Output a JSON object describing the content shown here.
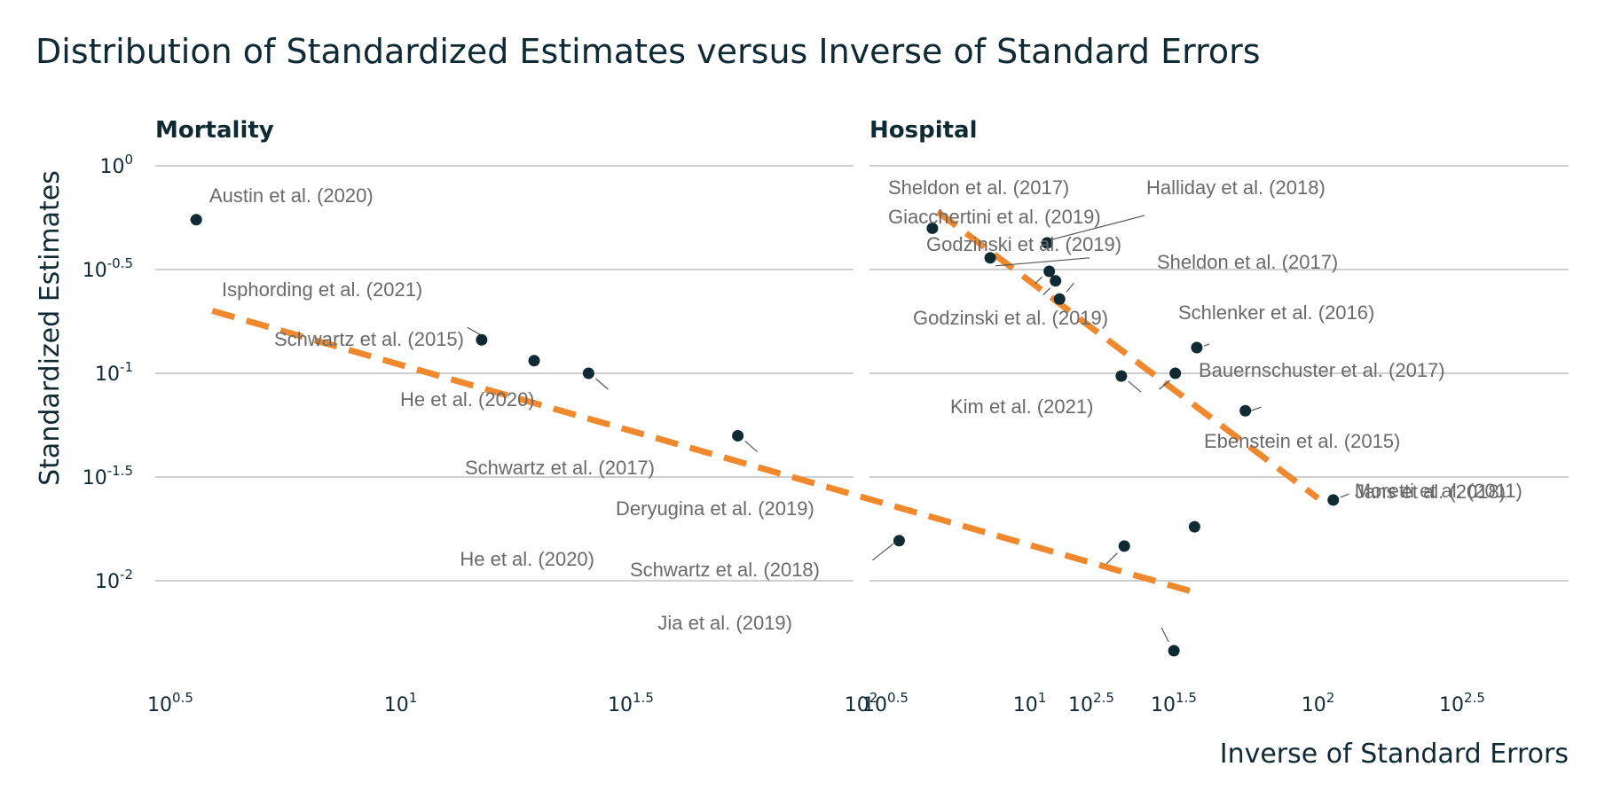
{
  "title": "Distribution of Standardized Estimates versus Inverse of Standard Errors",
  "chart_data": [
    {
      "type": "scatter",
      "panel_title": "Mortality",
      "ylabel": "Standardized Estimates",
      "x_scale": "log10",
      "y_scale": "log10",
      "ylim": [
        0.0045,
        1.0
      ],
      "y_ticks": [
        {
          "base": "10",
          "exp": "0",
          "value": 1.0
        },
        {
          "base": "10",
          "exp": "-0.5",
          "value": 0.3162
        },
        {
          "base": "10",
          "exp": "-1",
          "value": 0.1
        },
        {
          "base": "10",
          "exp": "-1.5",
          "value": 0.03162
        },
        {
          "base": "10",
          "exp": "-2",
          "value": 0.01
        }
      ],
      "x_ticks": [
        {
          "base": "10",
          "exp": "0.5",
          "value": 3.162
        },
        {
          "base": "10",
          "exp": "1",
          "value": 10
        },
        {
          "base": "10",
          "exp": "1.5",
          "value": 31.62
        },
        {
          "base": "10",
          "exp": "2",
          "value": 100
        },
        {
          "base": "10",
          "exp": "2.5",
          "value": 316.2
        }
      ],
      "grid": "horizontal",
      "fit_line": {
        "x": [
          3.9,
          530
        ],
        "y": [
          0.2,
          0.0088
        ]
      },
      "points": [
        {
          "label": "Austin et al. (2020)",
          "x": 3.6,
          "y": 0.55
        },
        {
          "label": "Isphording et al. (2021)",
          "x": 15.0,
          "y": 0.145
        },
        {
          "label": "Schwartz et al. (2015)",
          "x": 19.5,
          "y": 0.115
        },
        {
          "label": "He et al. (2020)",
          "x": 25.6,
          "y": 0.1
        },
        {
          "label": "Schwartz et al. (2017)",
          "x": 54.0,
          "y": 0.05
        },
        {
          "label": "Deryugina et al. (2019)",
          "x": 530.0,
          "y": 0.0182
        },
        {
          "label": "He et al. (2020)",
          "x": 121.0,
          "y": 0.0156
        },
        {
          "label": "Schwartz et al. (2018)",
          "x": 373.0,
          "y": 0.0147
        },
        {
          "label": "Jia et al. (2019)",
          "x": 478.0,
          "y": 0.0046
        }
      ]
    },
    {
      "type": "scatter",
      "panel_title": "Hospital",
      "x_scale": "log10",
      "y_scale": "log10",
      "ylim": [
        0.0045,
        1.0
      ],
      "x_ticks": [
        {
          "base": "10",
          "exp": "0.5",
          "value": 3.162
        },
        {
          "base": "10",
          "exp": "1",
          "value": 10
        },
        {
          "base": "10",
          "exp": "1.5",
          "value": 31.62
        },
        {
          "base": "10",
          "exp": "2",
          "value": 100
        },
        {
          "base": "10",
          "exp": "2.5",
          "value": 316.2
        }
      ],
      "grid": "horizontal",
      "fit_line": {
        "x": [
          4.8,
          100
        ],
        "y": [
          0.6,
          0.025
        ]
      },
      "points": [
        {
          "label": "Sheldon et al. (2017)",
          "x": 4.6,
          "y": 0.5
        },
        {
          "label": "Halliday et al. (2018)",
          "x": 11.5,
          "y": 0.425
        },
        {
          "label": "Giacchertini et al. (2019)",
          "x": 11.5,
          "y": 0.425
        },
        {
          "label": "Sheldon et al. (2017)",
          "x": 7.3,
          "y": 0.36
        },
        {
          "label": "Godzinski et al. (2019)",
          "x": 11.7,
          "y": 0.31
        },
        {
          "label": "Godzinski et al. (2019)",
          "x": 12.3,
          "y": 0.279
        },
        {
          "label": "Schlenker et al. (2016)",
          "x": 12.7,
          "y": 0.228
        },
        {
          "label": "Bauernschuster et al. (2017)",
          "x": 38.0,
          "y": 0.133
        },
        {
          "label": "Kim et al. (2021)",
          "x": 32.0,
          "y": 0.1
        },
        {
          "label": "Ebenstein et al. (2015)",
          "x": 20.8,
          "y": 0.097
        },
        {
          "label": "Jans et al. (2018)",
          "x": 56.0,
          "y": 0.066
        },
        {
          "label": "Moretti et al. (2011)",
          "x": 113.0,
          "y": 0.0245
        }
      ]
    }
  ],
  "xlabel": "Inverse of Standard Errors",
  "colors": {
    "points": "#0f2a33",
    "fit": "#f0892e",
    "text": "#0f2a33",
    "labels": "#6a6a6a",
    "grid": "#b5b5b5"
  }
}
